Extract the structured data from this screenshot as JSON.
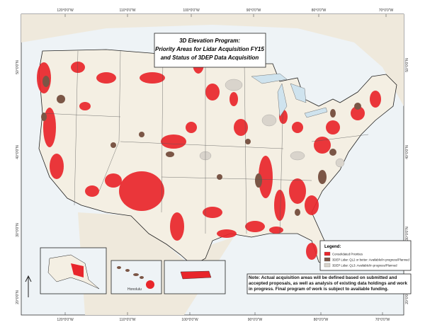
{
  "header": {
    "title": [
      "3D Elevation Program:",
      "Priority Areas for Lidar Acquisition FY15",
      "and Status of 3DEP Data Acquisition"
    ]
  },
  "graticule": {
    "top": [
      "120°0'0\"W",
      "110°0'0\"W",
      "100°0'0\"W",
      "90°0'0\"W",
      "80°0'0\"W",
      "70°0'0\"W"
    ],
    "bottom": [
      "120°0'0\"W",
      "110°0'0\"W",
      "100°0'0\"W",
      "90°0'0\"W",
      "80°0'0\"W",
      "70°0'0\"W"
    ],
    "left": [
      "50°0'0\"N",
      "40°0'0\"N",
      "30°0'0\"N",
      "20°0'0\"N"
    ],
    "right": [
      "50°0'0\"N",
      "40°0'0\"N",
      "30°0'0\"N",
      "20°0'0\"N"
    ]
  },
  "legend": {
    "title": "Legend:",
    "items": [
      {
        "label": "Consolidated Priorities",
        "color": "#e8262b"
      },
      {
        "label": "3DEP Lidar: QL2 or better: Available/In progress/Planned",
        "color": "#7b5646"
      },
      {
        "label": "3DEP Lidar: QL3: Available/In progress/Planned",
        "color": "#d9d4cc"
      }
    ]
  },
  "note": "Note: Actual acquisition areas will be defined based on submitted and accepted proposals, as well as analysis of existing data holdings and work in progress.  Final program of work is subject to available funding.",
  "insets": {
    "hawaii_label": "Honolulu"
  }
}
